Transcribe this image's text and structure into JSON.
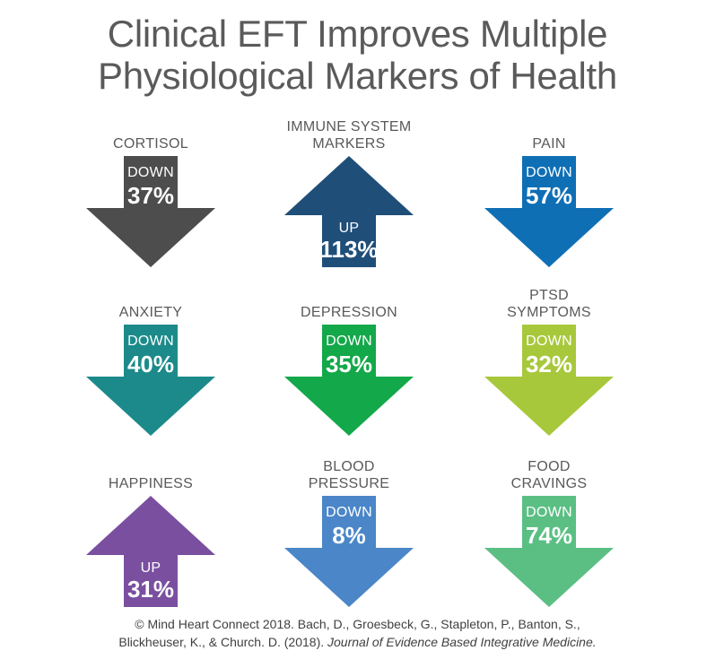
{
  "title": {
    "line1": "Clinical EFT Improves Multiple",
    "line2": "Physiological Markers of Health"
  },
  "markers": [
    {
      "label_lines": [
        "CORTISOL"
      ],
      "direction": "DOWN",
      "value": "37%",
      "color": "#4d4d4d"
    },
    {
      "label_lines": [
        "IMMUNE SYSTEM",
        "MARKERS"
      ],
      "direction": "UP",
      "value": "113%",
      "color": "#1f4e79"
    },
    {
      "label_lines": [
        "PAIN"
      ],
      "direction": "DOWN",
      "value": "57%",
      "color": "#0f6fb5"
    },
    {
      "label_lines": [
        "ANXIETY"
      ],
      "direction": "DOWN",
      "value": "40%",
      "color": "#1c8a8a"
    },
    {
      "label_lines": [
        "DEPRESSION"
      ],
      "direction": "DOWN",
      "value": "35%",
      "color": "#13a84a"
    },
    {
      "label_lines": [
        "PTSD",
        "SYMPTOMS"
      ],
      "direction": "DOWN",
      "value": "32%",
      "color": "#a8c83c"
    },
    {
      "label_lines": [
        "HAPPINESS"
      ],
      "direction": "UP",
      "value": "31%",
      "color": "#7a4fa0"
    },
    {
      "label_lines": [
        "BLOOD",
        "PRESSURE"
      ],
      "direction": "DOWN",
      "value": "8%",
      "color": "#4a86c8"
    },
    {
      "label_lines": [
        "FOOD",
        "CRAVINGS"
      ],
      "direction": "DOWN",
      "value": "74%",
      "color": "#5bbf84"
    }
  ],
  "citation": {
    "line1": "© Mind Heart Connect 2018. Bach, D., Groesbeck, G., Stapleton, P., Banton, S.,",
    "line2_plain": "Blickheuser, K., & Church. D. (2018).",
    "line2_italic": "Journal of Evidence Based Integrative Medicine."
  }
}
